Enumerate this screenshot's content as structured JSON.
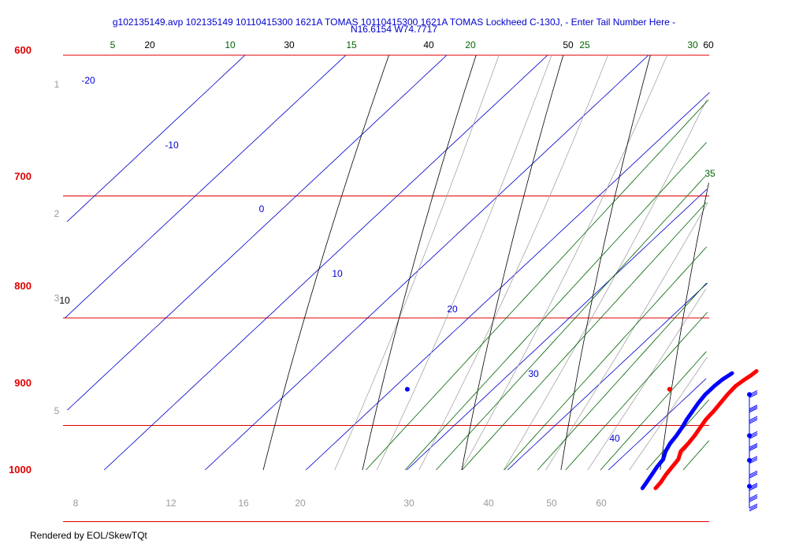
{
  "chart_data": {
    "type": "skew-t",
    "title": [
      "g102135149.avp 102135149 10110415300 1621A TOMAS 10110415300 1621A TOMAS Lockheed C-130J, - Enter Tail Number Here -",
      "N16.6154 W74.7717"
    ],
    "pressure_labels": [
      "600",
      "700",
      "800",
      "900",
      "1000"
    ],
    "isotherm_labels_top": [
      "-20",
      "-10",
      "0",
      "10",
      "20",
      "30",
      "40"
    ],
    "isotherm_labels_interior": [
      "30",
      "40"
    ],
    "mixing_ratio_top_labels": [
      "5",
      "10",
      "15",
      "20",
      "25",
      "30",
      "35"
    ],
    "dry_adiabat_labels": [
      "20",
      "30",
      "40",
      "50",
      "60",
      "10"
    ],
    "height_labels": [
      "1",
      "2",
      "3",
      "5"
    ],
    "bottom_labels": [
      "8",
      "12",
      "16",
      "20",
      "30",
      "40",
      "50",
      "60"
    ],
    "colors": {
      "isobar": "#e00000",
      "isotherm": "#0000cc",
      "mixing_ratio": "#006400",
      "dry_adiabat": "#000000",
      "moist_adiabat": "#9a9a9a",
      "temperature": "#ff0000",
      "dewpoint": "#0000ff",
      "title": "#0000cc"
    },
    "markers": [
      {
        "name": "isolated-temperature-point",
        "color": "#ff0000",
        "pressure_hPa": 865,
        "temperature_C": 17.5
      },
      {
        "name": "isolated-dewpoint-point",
        "color": "#0000ff",
        "pressure_hPa": 865,
        "temperature_C": -8.5
      }
    ],
    "temperature_profile": [
      {
        "p": 848,
        "t": 24.2
      },
      {
        "p": 852,
        "t": 24.1
      },
      {
        "p": 856,
        "t": 23.9
      },
      {
        "p": 862,
        "t": 23.7
      },
      {
        "p": 870,
        "t": 23.8
      },
      {
        "p": 878,
        "t": 24.0
      },
      {
        "p": 886,
        "t": 24.2
      },
      {
        "p": 894,
        "t": 24.3
      },
      {
        "p": 902,
        "t": 24.6
      },
      {
        "p": 910,
        "t": 24.9
      },
      {
        "p": 918,
        "t": 25.1
      },
      {
        "p": 926,
        "t": 25.2
      },
      {
        "p": 934,
        "t": 25.8
      },
      {
        "p": 942,
        "t": 26.0
      },
      {
        "p": 950,
        "t": 26.2
      },
      {
        "p": 958,
        "t": 26.5
      },
      {
        "p": 964,
        "t": 26.6
      }
    ],
    "dewpoint_profile": [
      {
        "p": 850,
        "t": 22.0
      },
      {
        "p": 856,
        "t": 21.7
      },
      {
        "p": 862,
        "t": 21.6
      },
      {
        "p": 870,
        "t": 21.6
      },
      {
        "p": 878,
        "t": 21.8
      },
      {
        "p": 886,
        "t": 22.1
      },
      {
        "p": 894,
        "t": 22.4
      },
      {
        "p": 902,
        "t": 22.8
      },
      {
        "p": 910,
        "t": 23.1
      },
      {
        "p": 918,
        "t": 23.3
      },
      {
        "p": 926,
        "t": 23.7
      },
      {
        "p": 934,
        "t": 24.3
      },
      {
        "p": 942,
        "t": 24.5
      },
      {
        "p": 950,
        "t": 24.8
      },
      {
        "p": 958,
        "t": 25.1
      },
      {
        "p": 964,
        "t": 25.3
      }
    ],
    "wind_barb_pressures": [
      870,
      884,
      895,
      910,
      922,
      935,
      950,
      963,
      975,
      985
    ],
    "wind_dots_pressures": [
      870,
      910,
      935,
      962
    ]
  },
  "footer": "Rendered by EOL/SkewTQt"
}
